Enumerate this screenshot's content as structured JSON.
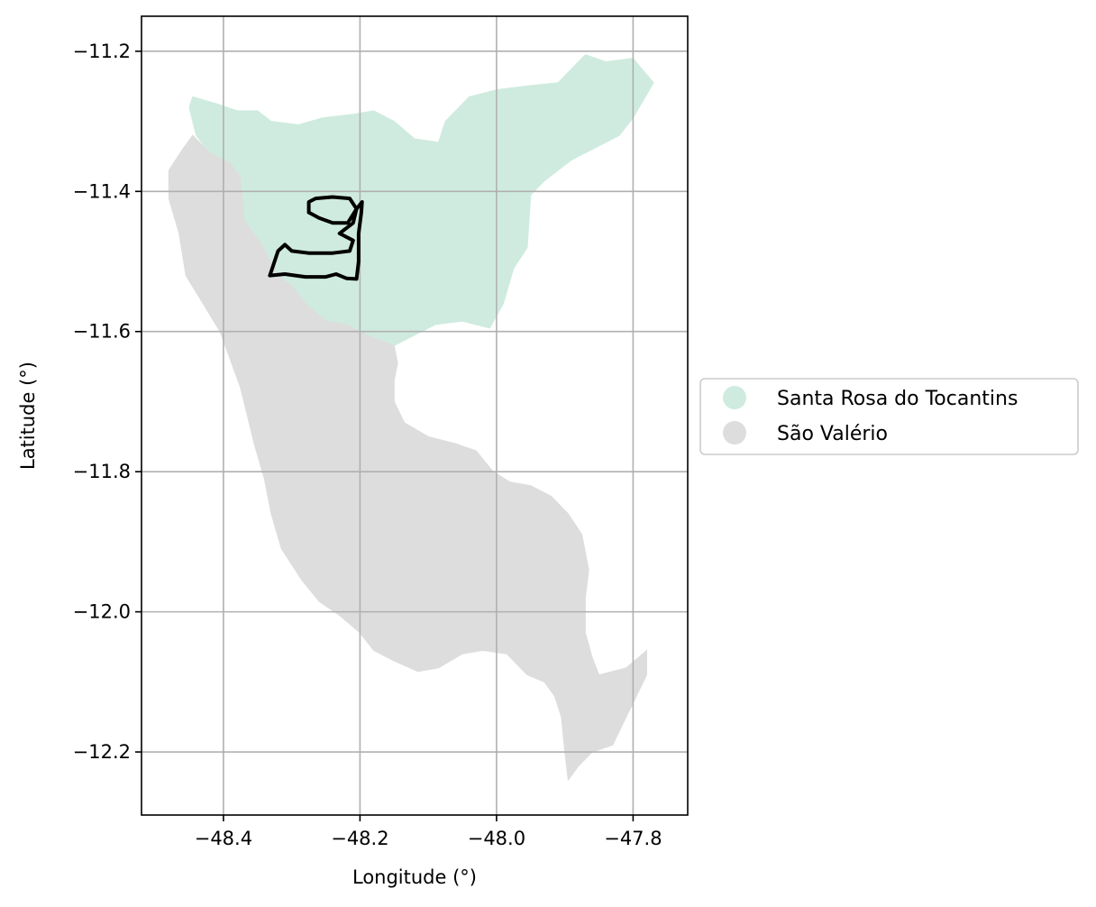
{
  "chart_data": {
    "type": "map",
    "xlabel": "Longitude (°)",
    "ylabel": "Latitude (°)",
    "xlim": [
      -48.52,
      -47.72
    ],
    "ylim": [
      -12.29,
      -11.15
    ],
    "xticks": [
      -48.4,
      -48.2,
      -48.0,
      -47.8
    ],
    "yticks": [
      -11.2,
      -11.4,
      -11.6,
      -11.8,
      -12.0,
      -12.2
    ],
    "xtick_labels": [
      "−48.4",
      "−48.2",
      "−48.0",
      "−47.8"
    ],
    "ytick_labels": [
      "−11.2",
      "−11.4",
      "−11.6",
      "−11.8",
      "−12.0",
      "−12.2"
    ],
    "grid": true,
    "legend_position": "center-right outside",
    "legend": [
      {
        "label": "Santa Rosa do Tocantins",
        "color": "#cfebdf"
      },
      {
        "label": "São Valério",
        "color": "#dddddd"
      }
    ],
    "regions": [
      {
        "name": "Santa Rosa do Tocantins",
        "color": "#cfebdf",
        "coords": [
          [
            -48.445,
            -11.265
          ],
          [
            -48.41,
            -11.275
          ],
          [
            -48.38,
            -11.285
          ],
          [
            -48.35,
            -11.285
          ],
          [
            -48.33,
            -11.3
          ],
          [
            -48.29,
            -11.305
          ],
          [
            -48.255,
            -11.295
          ],
          [
            -48.21,
            -11.29
          ],
          [
            -48.18,
            -11.285
          ],
          [
            -48.15,
            -11.3
          ],
          [
            -48.12,
            -11.325
          ],
          [
            -48.085,
            -11.33
          ],
          [
            -48.075,
            -11.3
          ],
          [
            -48.04,
            -11.265
          ],
          [
            -48.0,
            -11.255
          ],
          [
            -47.96,
            -11.25
          ],
          [
            -47.91,
            -11.245
          ],
          [
            -47.87,
            -11.205
          ],
          [
            -47.84,
            -11.215
          ],
          [
            -47.8,
            -11.21
          ],
          [
            -47.77,
            -11.245
          ],
          [
            -47.8,
            -11.295
          ],
          [
            -47.82,
            -11.32
          ],
          [
            -47.85,
            -11.335
          ],
          [
            -47.87,
            -11.345
          ],
          [
            -47.89,
            -11.355
          ],
          [
            -47.93,
            -11.385
          ],
          [
            -47.95,
            -11.405
          ],
          [
            -47.955,
            -11.48
          ],
          [
            -47.975,
            -11.51
          ],
          [
            -47.99,
            -11.56
          ],
          [
            -48.01,
            -11.595
          ],
          [
            -48.05,
            -11.585
          ],
          [
            -48.09,
            -11.59
          ],
          [
            -48.15,
            -11.62
          ],
          [
            -48.19,
            -11.605
          ],
          [
            -48.22,
            -11.59
          ],
          [
            -48.25,
            -11.585
          ],
          [
            -48.28,
            -11.56
          ],
          [
            -48.3,
            -11.535
          ],
          [
            -48.32,
            -11.52
          ],
          [
            -48.345,
            -11.475
          ],
          [
            -48.37,
            -11.44
          ],
          [
            -48.375,
            -11.38
          ],
          [
            -48.39,
            -11.36
          ],
          [
            -48.42,
            -11.345
          ],
          [
            -48.44,
            -11.32
          ],
          [
            -48.45,
            -11.28
          ]
        ]
      },
      {
        "name": "São Valério",
        "color": "#dddddd",
        "coords": [
          [
            -48.445,
            -11.32
          ],
          [
            -48.42,
            -11.345
          ],
          [
            -48.39,
            -11.36
          ],
          [
            -48.375,
            -11.38
          ],
          [
            -48.37,
            -11.44
          ],
          [
            -48.345,
            -11.475
          ],
          [
            -48.32,
            -11.52
          ],
          [
            -48.3,
            -11.535
          ],
          [
            -48.28,
            -11.56
          ],
          [
            -48.25,
            -11.585
          ],
          [
            -48.22,
            -11.59
          ],
          [
            -48.19,
            -11.605
          ],
          [
            -48.15,
            -11.62
          ],
          [
            -48.145,
            -11.645
          ],
          [
            -48.15,
            -11.67
          ],
          [
            -48.15,
            -11.7
          ],
          [
            -48.135,
            -11.73
          ],
          [
            -48.1,
            -11.75
          ],
          [
            -48.06,
            -11.76
          ],
          [
            -48.03,
            -11.77
          ],
          [
            -48.005,
            -11.8
          ],
          [
            -47.98,
            -11.815
          ],
          [
            -47.95,
            -11.82
          ],
          [
            -47.92,
            -11.835
          ],
          [
            -47.895,
            -11.86
          ],
          [
            -47.875,
            -11.89
          ],
          [
            -47.865,
            -11.94
          ],
          [
            -47.87,
            -11.98
          ],
          [
            -47.87,
            -12.03
          ],
          [
            -47.86,
            -12.065
          ],
          [
            -47.85,
            -12.09
          ],
          [
            -47.81,
            -12.08
          ],
          [
            -47.78,
            -12.055
          ],
          [
            -47.78,
            -12.09
          ],
          [
            -47.8,
            -12.13
          ],
          [
            -47.815,
            -12.16
          ],
          [
            -47.83,
            -12.19
          ],
          [
            -47.86,
            -12.2
          ],
          [
            -47.88,
            -12.22
          ],
          [
            -47.895,
            -12.24
          ],
          [
            -47.9,
            -12.2
          ],
          [
            -47.905,
            -12.15
          ],
          [
            -47.915,
            -12.12
          ],
          [
            -47.93,
            -12.1
          ],
          [
            -47.955,
            -12.09
          ],
          [
            -47.985,
            -12.06
          ],
          [
            -48.02,
            -12.055
          ],
          [
            -48.05,
            -12.06
          ],
          [
            -48.085,
            -12.08
          ],
          [
            -48.115,
            -12.085
          ],
          [
            -48.15,
            -12.07
          ],
          [
            -48.18,
            -12.055
          ],
          [
            -48.2,
            -12.03
          ],
          [
            -48.23,
            -12.005
          ],
          [
            -48.26,
            -11.985
          ],
          [
            -48.285,
            -11.955
          ],
          [
            -48.315,
            -11.91
          ],
          [
            -48.33,
            -11.86
          ],
          [
            -48.34,
            -11.81
          ],
          [
            -48.355,
            -11.76
          ],
          [
            -48.365,
            -11.72
          ],
          [
            -48.375,
            -11.68
          ],
          [
            -48.39,
            -11.64
          ],
          [
            -48.405,
            -11.6
          ],
          [
            -48.43,
            -11.56
          ],
          [
            -48.455,
            -11.52
          ],
          [
            -48.465,
            -11.46
          ],
          [
            -48.48,
            -11.41
          ],
          [
            -48.48,
            -11.37
          ],
          [
            -48.46,
            -11.34
          ]
        ]
      }
    ],
    "route": [
      [
        -48.275,
        -11.43
      ],
      [
        -48.275,
        -11.415
      ],
      [
        -48.265,
        -11.41
      ],
      [
        -48.24,
        -11.408
      ],
      [
        -48.215,
        -11.41
      ],
      [
        -48.205,
        -11.425
      ],
      [
        -48.21,
        -11.445
      ],
      [
        -48.23,
        -11.46
      ],
      [
        -48.21,
        -11.47
      ],
      [
        -48.215,
        -11.485
      ],
      [
        -48.24,
        -11.488
      ],
      [
        -48.275,
        -11.488
      ],
      [
        -48.3,
        -11.485
      ],
      [
        -48.31,
        -11.476
      ],
      [
        -48.32,
        -11.485
      ],
      [
        -48.332,
        -11.52
      ],
      [
        -48.31,
        -11.518
      ],
      [
        -48.28,
        -11.522
      ],
      [
        -48.25,
        -11.522
      ],
      [
        -48.235,
        -11.518
      ],
      [
        -48.22,
        -11.524
      ],
      [
        -48.205,
        -11.525
      ],
      [
        -48.202,
        -11.5
      ],
      [
        -48.202,
        -11.46
      ],
      [
        -48.198,
        -11.43
      ],
      [
        -48.197,
        -11.415
      ],
      [
        -48.205,
        -11.425
      ],
      [
        -48.218,
        -11.445
      ],
      [
        -48.24,
        -11.445
      ],
      [
        -48.26,
        -11.438
      ],
      [
        -48.275,
        -11.43
      ]
    ],
    "route_style": {
      "color": "#000000"
    }
  }
}
